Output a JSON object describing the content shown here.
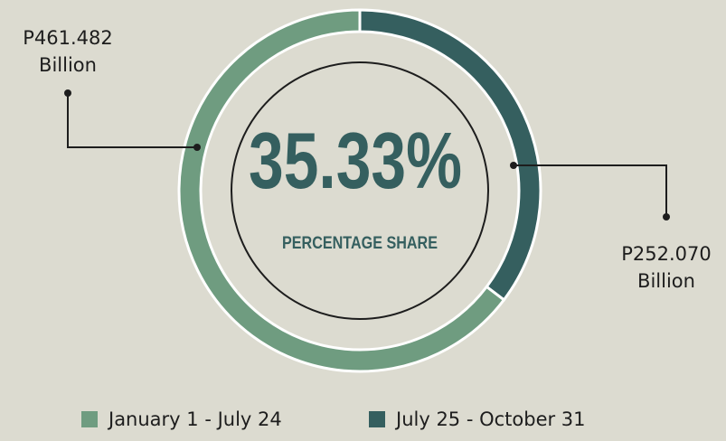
{
  "chart_data": {
    "type": "donut",
    "center_label": "35.33%",
    "center_sublabel": "PERCENTAGE SHARE",
    "categories": [
      "January 1 - July 24",
      "July 25 - October 31"
    ],
    "values": [
      461.482,
      252.07
    ],
    "value_labels": [
      "P461.482 Billion",
      "P252.070 Billion"
    ],
    "colors": [
      "#6f9c80",
      "#355f5f"
    ],
    "legend": "bottom"
  }
}
